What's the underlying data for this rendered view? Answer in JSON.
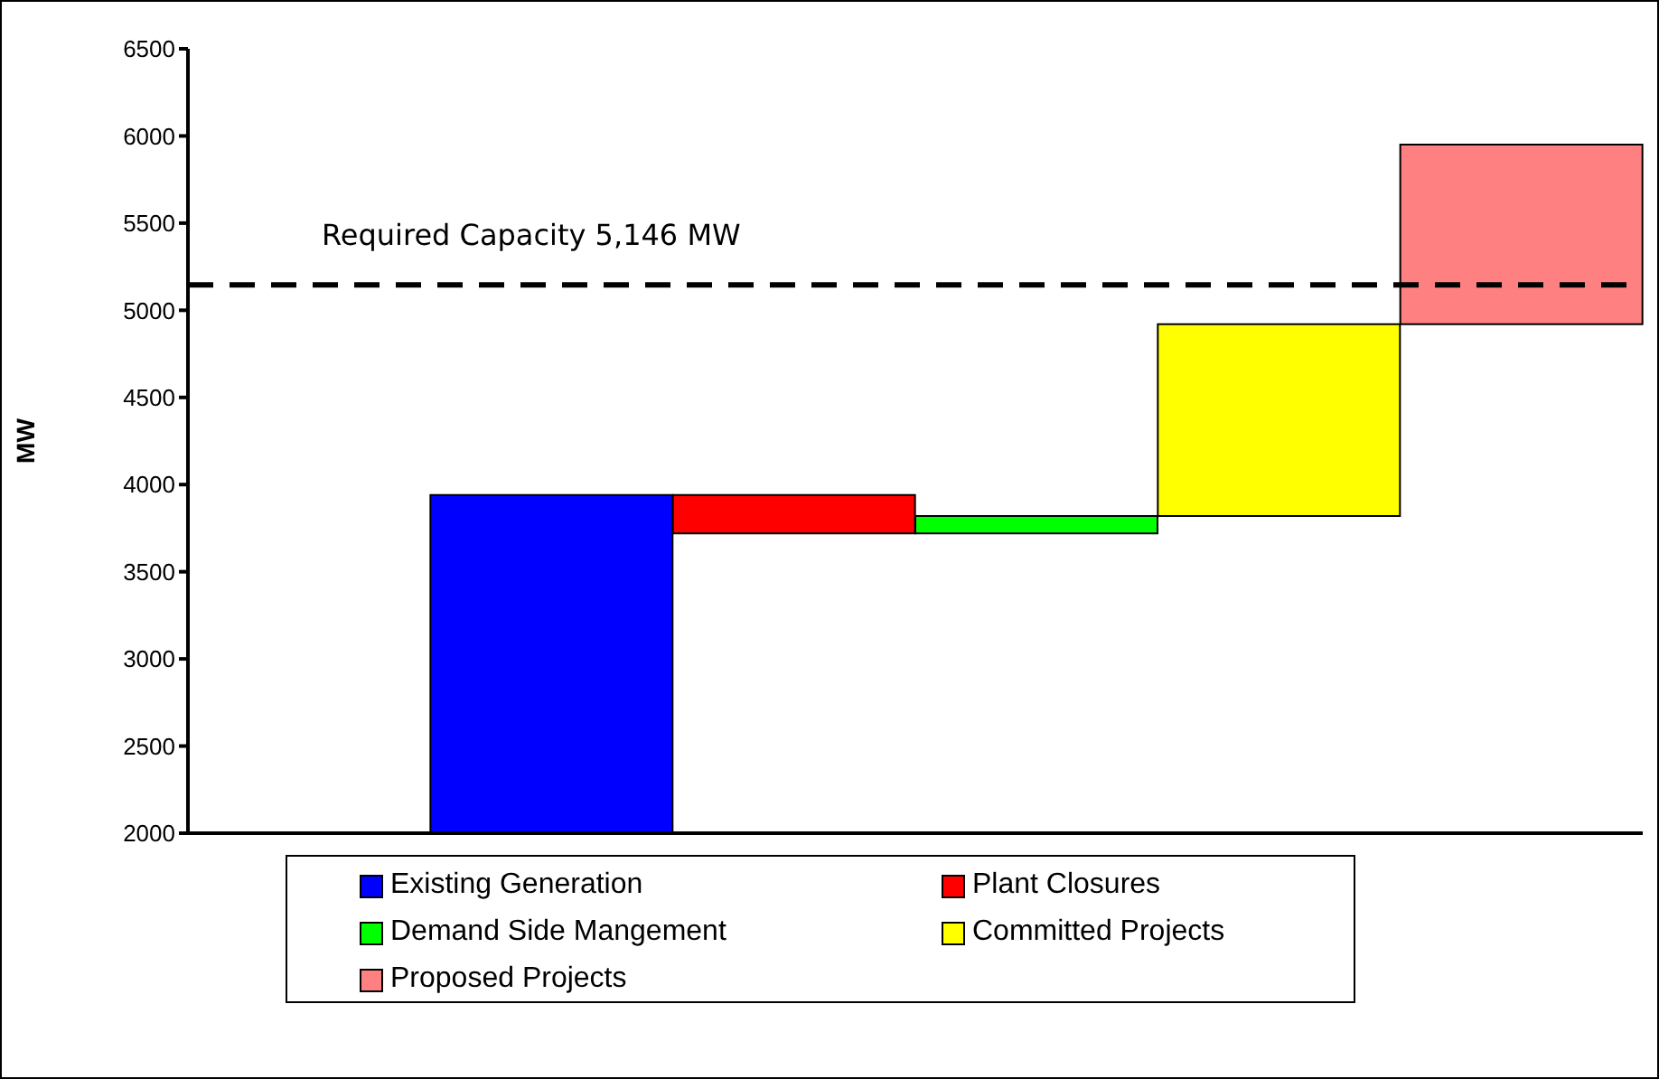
{
  "chart_data": {
    "type": "bar",
    "ylabel": "MW",
    "categories": [
      null,
      null,
      null,
      null,
      null,
      null
    ],
    "series": [
      {
        "name": "Existing Generation",
        "color": "#0000ff",
        "values": [
          null,
          1940,
          null,
          null,
          null,
          null
        ],
        "base": [
          null,
          2000,
          null,
          null,
          null,
          null
        ]
      },
      {
        "name": "Plant Closures",
        "color": "#ff0000",
        "values": [
          null,
          null,
          220,
          null,
          null,
          null
        ],
        "base": [
          null,
          null,
          3720,
          null,
          null,
          null
        ]
      },
      {
        "name": "Demand Side Mangement",
        "color": "#00ff00",
        "values": [
          null,
          null,
          null,
          100,
          null,
          null
        ],
        "base": [
          null,
          null,
          null,
          3720,
          null,
          null
        ]
      },
      {
        "name": "Committed Projects",
        "color": "#ffff00",
        "values": [
          null,
          null,
          null,
          null,
          1100,
          null
        ],
        "base": [
          null,
          null,
          null,
          null,
          3820,
          null
        ]
      },
      {
        "name": "Proposed Projects",
        "color": "#ff8080",
        "values": [
          null,
          null,
          null,
          null,
          null,
          1030
        ],
        "base": [
          null,
          null,
          null,
          null,
          null,
          4920
        ]
      }
    ],
    "ylim": [
      2000,
      6500
    ],
    "yticks": [
      2000,
      2500,
      3000,
      3500,
      4000,
      4500,
      5000,
      5500,
      6000,
      6500
    ],
    "legend": "bottom",
    "ref_lines": [
      {
        "axis": "y",
        "value": 5146,
        "label": "Required Capacity 5,146 MW",
        "color": "#000000",
        "line_style": "dashed"
      }
    ]
  }
}
